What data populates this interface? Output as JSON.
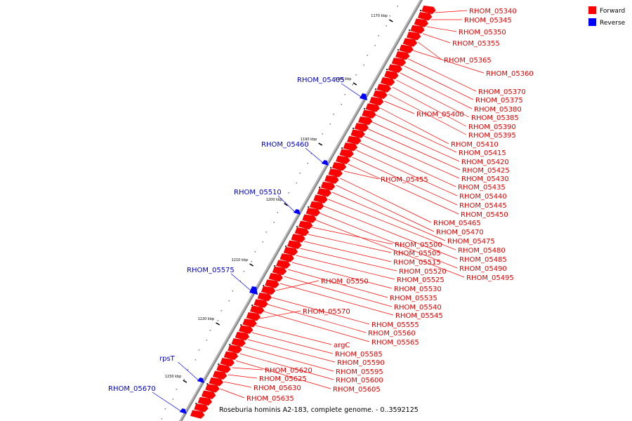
{
  "caption": "Roseburia hominis A2-183, complete genome. - 0..3592125",
  "legend": [
    {
      "label": "Forward",
      "color": "#ff0000"
    },
    {
      "label": "Reverse",
      "color": "#0000ff"
    }
  ],
  "colors": {
    "forward": "#ff0000",
    "reverse": "#0000ff",
    "backbone": "#999999",
    "forward_label": "#e00000",
    "reverse_label": "#0000cc"
  },
  "ticks": [
    "1170 kbp",
    "1180 kbp",
    "1190 kbp",
    "1200 kbp",
    "1210 kbp",
    "1220 kbp",
    "1230 kbp"
  ],
  "forward_genes": [
    "RHOM_05340",
    "RHOM_05345",
    "RHOM_05350",
    "RHOM_05355",
    "RHOM_05365",
    "RHOM_05360",
    "RHOM_05370",
    "RHOM_05375",
    "RHOM_05380",
    "RHOM_05385",
    "RHOM_05390",
    "RHOM_05395",
    "RHOM_05400",
    "RHOM_05410",
    "RHOM_05415",
    "RHOM_05420",
    "RHOM_05425",
    "RHOM_05430",
    "RHOM_05435",
    "RHOM_05440",
    "RHOM_05445",
    "RHOM_05450",
    "RHOM_05455",
    "RHOM_05465",
    "RHOM_05470",
    "RHOM_05475",
    "RHOM_05480",
    "RHOM_05485",
    "RHOM_05490",
    "RHOM_05495",
    "RHOM_05500",
    "RHOM_05505",
    "RHOM_05515",
    "RHOM_05520",
    "RHOM_05525",
    "RHOM_05530",
    "RHOM_05535",
    "RHOM_05540",
    "RHOM_05545",
    "RHOM_05550",
    "RHOM_05555",
    "RHOM_05560",
    "RHOM_05565",
    "RHOM_05570",
    "argC",
    "RHOM_05585",
    "RHOM_05590",
    "RHOM_05595",
    "RHOM_05600",
    "RHOM_05605",
    "RHOM_05620",
    "RHOM_05625",
    "RHOM_05630",
    "RHOM_05635"
  ],
  "reverse_genes": [
    "RHOM_05405",
    "RHOM_05460",
    "RHOM_05510",
    "RHOM_05575",
    "rpsT",
    "RHOM_05670"
  ]
}
